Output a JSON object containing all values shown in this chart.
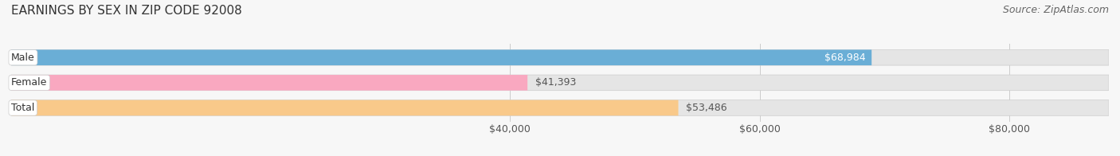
{
  "title": "EARNINGS BY SEX IN ZIP CODE 92008",
  "source": "Source: ZipAtlas.com",
  "categories": [
    "Male",
    "Female",
    "Total"
  ],
  "values": [
    68984,
    41393,
    53486
  ],
  "bar_colors": [
    "#6aaed6",
    "#f9a8c0",
    "#f9c98a"
  ],
  "label_texts": [
    "$68,984",
    "$41,393",
    "$53,486"
  ],
  "label_inside": [
    true,
    false,
    false
  ],
  "x_min": 0,
  "x_max": 88000,
  "x_ticks": [
    40000,
    60000,
    80000
  ],
  "x_tick_labels": [
    "$40,000",
    "$60,000",
    "$80,000"
  ],
  "background_color": "#f7f7f7",
  "bar_background_color": "#e5e5e5",
  "title_fontsize": 11,
  "source_fontsize": 9,
  "label_fontsize": 9,
  "cat_fontsize": 9,
  "tick_fontsize": 9,
  "bar_height": 0.62
}
